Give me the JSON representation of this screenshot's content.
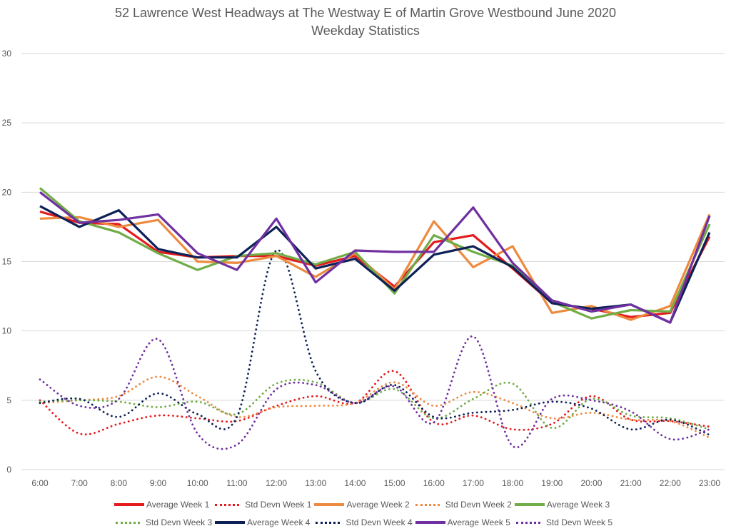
{
  "chart_data": {
    "type": "line",
    "title": "52 Lawrence West Headways at The Westway E of Martin Grove Westbound June 2020",
    "subtitle": "Weekday Statistics",
    "xlabel": "",
    "ylabel": "",
    "ylim": [
      0,
      30
    ],
    "yticks": [
      0,
      5,
      10,
      15,
      20,
      25,
      30
    ],
    "grid": true,
    "legend_position": "bottom",
    "categories": [
      "6:00",
      "7:00",
      "8:00",
      "9:00",
      "10:00",
      "11:00",
      "12:00",
      "13:00",
      "14:00",
      "15:00",
      "16:00",
      "17:00",
      "18:00",
      "19:00",
      "20:00",
      "21:00",
      "22:00",
      "23:00"
    ],
    "series": [
      {
        "name": "Average Week 1",
        "style": "solid",
        "color": "#e41a1c",
        "values": [
          18.6,
          17.8,
          17.7,
          15.7,
          15.3,
          15.4,
          15.4,
          14.7,
          15.4,
          13.2,
          16.4,
          16.9,
          14.5,
          12.0,
          11.6,
          11.0,
          11.3,
          16.8
        ]
      },
      {
        "name": "Std Devn Week 1",
        "style": "dotted",
        "color": "#e41a1c",
        "values": [
          5.0,
          2.6,
          3.3,
          3.9,
          3.7,
          3.5,
          4.6,
          5.3,
          4.8,
          7.1,
          3.4,
          3.9,
          2.9,
          3.3,
          5.3,
          3.6,
          3.5,
          3.1
        ]
      },
      {
        "name": "Average Week 2",
        "style": "solid",
        "color": "#ed8a3f",
        "values": [
          18.1,
          18.2,
          17.5,
          18.0,
          15.0,
          14.9,
          15.4,
          13.9,
          15.6,
          13.0,
          17.9,
          14.6,
          16.1,
          11.3,
          11.8,
          10.8,
          11.8,
          18.4
        ]
      },
      {
        "name": "Std Devn Week 2",
        "style": "dotted",
        "color": "#ed8a3f",
        "values": [
          4.8,
          5.0,
          5.3,
          6.7,
          5.3,
          3.8,
          4.5,
          4.6,
          4.8,
          6.3,
          4.6,
          5.6,
          4.8,
          3.7,
          4.1,
          3.6,
          3.5,
          2.3
        ]
      },
      {
        "name": "Average Week 3",
        "style": "solid",
        "color": "#70ad47",
        "values": [
          20.3,
          17.9,
          17.1,
          15.6,
          14.4,
          15.4,
          15.6,
          14.8,
          15.7,
          12.7,
          16.9,
          15.7,
          14.7,
          12.1,
          10.9,
          11.5,
          11.4,
          17.7
        ]
      },
      {
        "name": "Std Devn Week 3",
        "style": "dotted",
        "color": "#70ad47",
        "values": [
          4.9,
          5.0,
          4.9,
          4.5,
          4.9,
          4.0,
          6.2,
          6.3,
          4.8,
          5.8,
          3.7,
          5.1,
          6.2,
          3.0,
          5.1,
          3.9,
          3.7,
          2.9
        ]
      },
      {
        "name": "Average Week 4",
        "style": "solid",
        "color": "#0d2157",
        "values": [
          19.0,
          17.5,
          18.7,
          15.9,
          15.3,
          15.3,
          17.5,
          14.5,
          15.2,
          12.9,
          15.5,
          16.1,
          14.6,
          12.0,
          11.6,
          11.9,
          10.6,
          17.1
        ]
      },
      {
        "name": "Std Devn Week 4",
        "style": "dotted",
        "color": "#0d2157",
        "values": [
          4.8,
          5.1,
          3.8,
          5.5,
          4.0,
          3.8,
          15.8,
          7.1,
          4.8,
          6.1,
          3.8,
          4.1,
          4.3,
          4.9,
          4.4,
          2.9,
          3.6,
          2.5
        ]
      },
      {
        "name": "Average Week 5",
        "style": "solid",
        "color": "#7030a0",
        "values": [
          20.0,
          17.8,
          18.0,
          18.4,
          15.6,
          14.4,
          18.1,
          13.5,
          15.8,
          15.7,
          15.7,
          18.9,
          14.9,
          12.2,
          11.4,
          11.9,
          10.6,
          18.3
        ]
      },
      {
        "name": "Std Devn Week 5",
        "style": "dotted",
        "color": "#7030a0",
        "values": [
          6.5,
          4.6,
          5.1,
          9.4,
          2.6,
          1.8,
          5.8,
          6.1,
          4.8,
          6.0,
          3.4,
          9.6,
          1.7,
          5.1,
          5.0,
          4.2,
          2.2,
          2.9
        ]
      }
    ]
  }
}
